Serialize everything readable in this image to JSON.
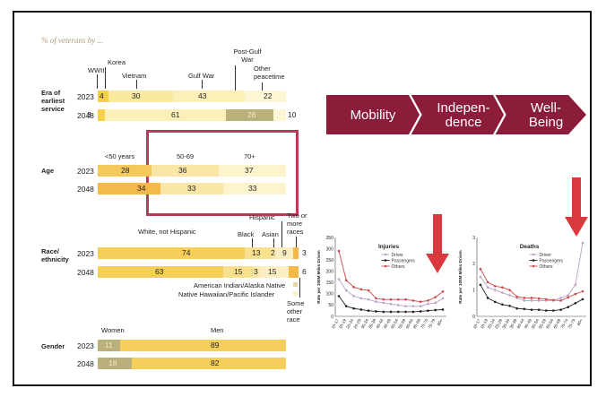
{
  "header": {
    "caption": "% of veterans by ..."
  },
  "era": {
    "label": "Era of earliest service",
    "markers": {
      "wwii": "WWII",
      "korea": "Korea",
      "vietnam": "Vietnam",
      "gulf": "Gulf War",
      "postgulf": "Post-Gulf War",
      "other": "Other peacetime"
    },
    "rows": [
      {
        "year": "2023",
        "values": [
          "4",
          "30",
          "43",
          "22"
        ]
      },
      {
        "year": "2048",
        "values": [
          "3",
          "61",
          "26",
          "10"
        ]
      }
    ]
  },
  "age": {
    "label": "Age",
    "groups": [
      "<50 years",
      "50-69",
      "70+"
    ],
    "rows": [
      {
        "year": "2023",
        "values": [
          "28",
          "36",
          "37"
        ]
      },
      {
        "year": "2048",
        "values": [
          "34",
          "33",
          "33"
        ]
      }
    ]
  },
  "race": {
    "label": "Race/ ethnicity",
    "groups": {
      "white": "White, not Hispanic",
      "black": "Black",
      "asian": "Asian",
      "hispanic": "Hispanic",
      "twoplus": "Two or more races"
    },
    "notes": {
      "aian": "American Indian/Alaska Native",
      "nhpi": "Native Hawaiian/Pacific Islander",
      "other": "Some other race"
    },
    "rows": [
      {
        "year": "2023",
        "values": [
          "74",
          "13",
          "2",
          "9",
          "3"
        ]
      },
      {
        "year": "2048",
        "values": [
          "63",
          "15",
          "3",
          "15",
          "6"
        ]
      }
    ]
  },
  "gender": {
    "label": "Gender",
    "groups": [
      "Women",
      "Men"
    ],
    "rows": [
      {
        "year": "2023",
        "values": [
          "11",
          "89"
        ]
      },
      {
        "year": "2048",
        "values": [
          "18",
          "82"
        ]
      }
    ]
  },
  "process": {
    "steps": [
      "Mobility",
      "Indepen-\ndence",
      "Well-\nBeing"
    ],
    "color": "#8c1d3a"
  },
  "arrow_color": "#d9383e",
  "chart_data": [
    {
      "type": "line",
      "title": "Injuries",
      "ylabel": "Rate per 100M Miles Driven",
      "categories": [
        "16-17",
        "18-19",
        "20-24",
        "25-29",
        "30-34",
        "35-39",
        "40-44",
        "45-49",
        "50-54",
        "55-59",
        "60-64",
        "65-69",
        "70-74",
        "75-79",
        "80+"
      ],
      "ylim": [
        0,
        350
      ],
      "yticks": [
        "0",
        "50",
        "100",
        "150",
        "200",
        "250",
        "300",
        "350"
      ],
      "series": [
        {
          "name": "Driver",
          "color": "#b9a2c7",
          "values": [
            165,
            115,
            90,
            80,
            75,
            65,
            60,
            55,
            50,
            45,
            45,
            45,
            55,
            60,
            80
          ]
        },
        {
          "name": "Passengers",
          "color": "#222222",
          "values": [
            90,
            45,
            35,
            30,
            25,
            22,
            20,
            20,
            20,
            20,
            20,
            22,
            25,
            28,
            30
          ]
        },
        {
          "name": "Others",
          "color": "#c94a4a",
          "values": [
            290,
            160,
            130,
            120,
            115,
            80,
            75,
            75,
            75,
            75,
            70,
            65,
            70,
            85,
            110
          ]
        }
      ]
    },
    {
      "type": "line",
      "title": "Deaths",
      "ylabel": "Rate per 100M Miles Driven",
      "categories": [
        "16-17",
        "18-19",
        "20-24",
        "25-29",
        "30-34",
        "35-39",
        "40-44",
        "45-49",
        "50-54",
        "55-59",
        "60-64",
        "65-69",
        "70-74",
        "75-79",
        "80+"
      ],
      "ylim": [
        0,
        3
      ],
      "yticks": [
        "0",
        "1",
        "2",
        "3"
      ],
      "series": [
        {
          "name": "Driver",
          "color": "#b9a2c7",
          "values": [
            1.5,
            1.1,
            1.0,
            0.9,
            0.8,
            0.7,
            0.6,
            0.6,
            0.6,
            0.6,
            0.6,
            0.7,
            0.8,
            1.2,
            2.8
          ]
        },
        {
          "name": "Passengers",
          "color": "#222222",
          "values": [
            1.2,
            0.7,
            0.55,
            0.45,
            0.4,
            0.3,
            0.28,
            0.25,
            0.25,
            0.22,
            0.22,
            0.25,
            0.35,
            0.5,
            0.65
          ]
        },
        {
          "name": "Others",
          "color": "#c94a4a",
          "values": [
            1.8,
            1.3,
            1.15,
            1.1,
            1.0,
            0.75,
            0.7,
            0.7,
            0.68,
            0.65,
            0.62,
            0.6,
            0.72,
            0.85,
            0.95
          ]
        }
      ]
    }
  ]
}
